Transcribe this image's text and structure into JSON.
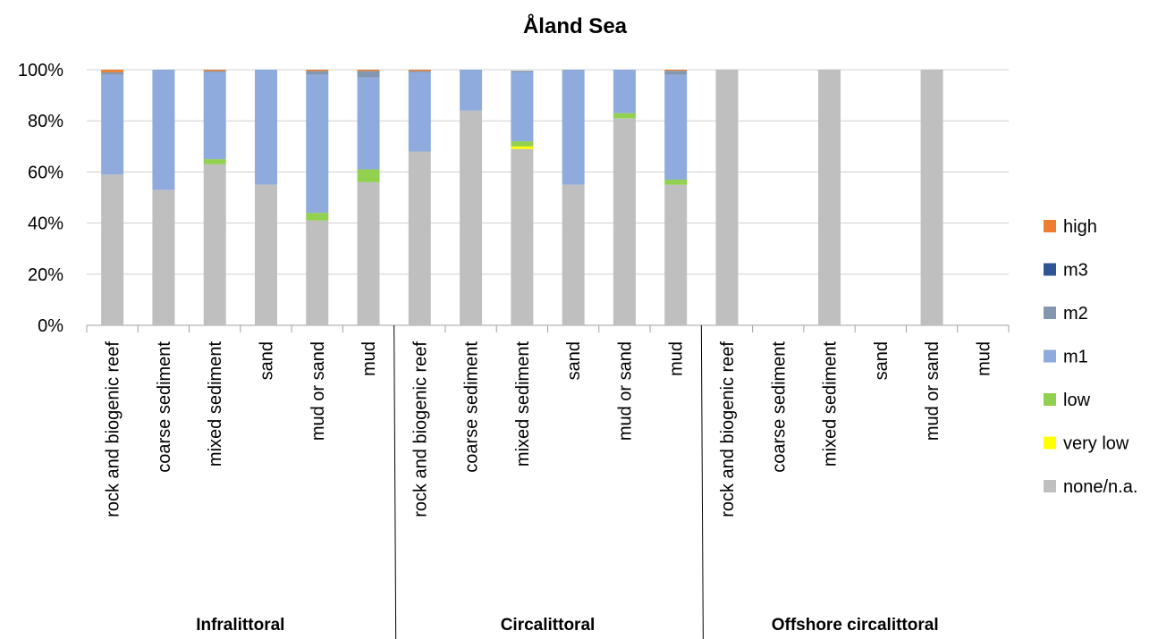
{
  "chart_data": {
    "type": "bar",
    "stacked": "percent",
    "title": "Åland Sea",
    "xlabel": "",
    "ylabel": "",
    "ylim": [
      0,
      100
    ],
    "yticks": [
      "0%",
      "20%",
      "40%",
      "60%",
      "80%",
      "100%"
    ],
    "grid": true,
    "legend_position": "right",
    "categories": [
      "rock and biogenic reef",
      "coarse sediment",
      "mixed sediment",
      "sand",
      "mud or sand",
      "mud",
      "rock and biogenic reef",
      "coarse sediment",
      "mixed sediment",
      "sand",
      "mud or sand",
      "mud",
      "rock and biogenic reef",
      "coarse sediment",
      "mixed sediment",
      "sand",
      "mud or sand",
      "mud"
    ],
    "groups": [
      {
        "label": "Infralittoral",
        "start": 0,
        "count": 6
      },
      {
        "label": "Circalittoral",
        "start": 6,
        "count": 6
      },
      {
        "label": "Offshore circalittoral",
        "start": 12,
        "count": 6
      }
    ],
    "series": [
      {
        "name": "none/n.a.",
        "color": "#bfbfbf",
        "values": [
          59,
          53,
          63,
          55,
          41,
          56,
          68,
          84,
          69,
          55,
          81,
          55,
          100,
          0,
          100,
          0,
          100,
          0
        ]
      },
      {
        "name": "very low",
        "color": "#ffff00",
        "values": [
          0,
          0,
          0,
          0,
          0,
          0,
          0,
          0,
          1,
          0,
          0,
          0,
          0,
          0,
          0,
          0,
          0,
          0
        ]
      },
      {
        "name": "low",
        "color": "#92d050",
        "values": [
          0,
          0,
          2,
          0,
          3,
          5,
          0,
          0,
          2,
          0,
          2,
          2,
          0,
          0,
          0,
          0,
          0,
          0
        ]
      },
      {
        "name": "m1",
        "color": "#8faadc",
        "values": [
          39,
          47,
          34,
          45,
          54,
          36,
          31,
          16,
          27,
          45,
          17,
          41,
          0,
          0,
          0,
          0,
          0,
          0
        ]
      },
      {
        "name": "m2",
        "color": "#8497b0",
        "values": [
          1,
          0,
          0.5,
          0,
          1.5,
          2.5,
          0.5,
          0,
          0.6,
          0,
          0,
          1.6,
          0,
          0,
          0,
          0,
          0,
          0
        ]
      },
      {
        "name": "m3",
        "color": "#2f5597",
        "values": [
          0,
          0,
          0,
          0,
          0,
          0,
          0,
          0,
          0,
          0,
          0,
          0,
          0,
          0,
          0,
          0,
          0,
          0
        ]
      },
      {
        "name": "high",
        "color": "#ed7d31",
        "values": [
          1,
          0,
          0.5,
          0,
          0.5,
          0.5,
          0.5,
          0,
          0,
          0,
          0,
          0.4,
          0,
          0,
          0,
          0,
          0,
          0
        ]
      }
    ],
    "legend_order": [
      "high",
      "m3",
      "m2",
      "m1",
      "low",
      "very low",
      "none/n.a."
    ]
  }
}
